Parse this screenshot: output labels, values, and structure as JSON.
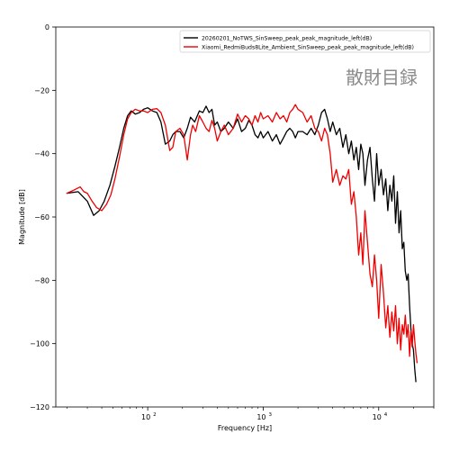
{
  "chart_data": {
    "type": "line",
    "title": "",
    "xlabel": "Frequency [Hz]",
    "ylabel": "Magnitude [dB]",
    "xscale": "log",
    "xlim": [
      16,
      30000
    ],
    "ylim": [
      -120,
      0
    ],
    "y_ticks": [
      0,
      -20,
      -40,
      -60,
      -80,
      -100,
      -120
    ],
    "y_tick_labels": [
      "0",
      "−20",
      "−40",
      "−60",
      "−80",
      "−100",
      "−120"
    ],
    "x_ticks": [
      100,
      1000,
      10000
    ],
    "x_tick_labels": [
      "10",
      "10",
      "10"
    ],
    "x_tick_exponents": [
      "2",
      "3",
      "4"
    ],
    "grid": false,
    "legend_position": "top-right",
    "watermark": "散財目録",
    "series": [
      {
        "name": "20260201_NoTWS_SinSweep_peak_peak_magnitude_left(dB)",
        "color": "#000000",
        "x": [
          20,
          25,
          30,
          34,
          38,
          42,
          47,
          52,
          57,
          62,
          67,
          72,
          78,
          85,
          92,
          100,
          110,
          120,
          130,
          142,
          155,
          165,
          175,
          190,
          205,
          220,
          235,
          255,
          280,
          300,
          320,
          340,
          360,
          380,
          400,
          430,
          460,
          500,
          550,
          600,
          650,
          700,
          750,
          800,
          850,
          900,
          950,
          1000,
          1100,
          1200,
          1300,
          1400,
          1500,
          1600,
          1700,
          1800,
          1900,
          2000,
          2200,
          2400,
          2600,
          2800,
          3000,
          3200,
          3400,
          3600,
          3800,
          4000,
          4300,
          4600,
          4900,
          5200,
          5500,
          5800,
          6100,
          6400,
          6700,
          7000,
          7300,
          7600,
          8000,
          8400,
          8800,
          9200,
          9600,
          10000,
          10500,
          11000,
          11500,
          12000,
          12500,
          13000,
          13500,
          14000,
          14500,
          15000,
          15500,
          16000,
          16500,
          17000,
          17500,
          18000,
          18500,
          19000,
          19500,
          20000,
          20500,
          21000
        ],
        "values": [
          -52.5,
          -52,
          -55,
          -59.5,
          -58,
          -55,
          -50,
          -44,
          -38,
          -32,
          -28,
          -26.5,
          -27.5,
          -27,
          -26,
          -25.5,
          -26.5,
          -27,
          -30,
          -37,
          -36,
          -34,
          -33,
          -33,
          -35,
          -32,
          -28.5,
          -30,
          -26.5,
          -27,
          -25,
          -27,
          -26,
          -31,
          -30,
          -33,
          -32,
          -30,
          -32,
          -29,
          -33,
          -32,
          -29.5,
          -31,
          -34,
          -35,
          -33,
          -35,
          -33,
          -36,
          -34,
          -37,
          -35,
          -33,
          -32,
          -33,
          -35,
          -33,
          -33,
          -34,
          -32,
          -34,
          -31,
          -27,
          -26,
          -29,
          -33,
          -30,
          -34,
          -32,
          -38,
          -34,
          -40,
          -36,
          -42,
          -38,
          -45,
          -37,
          -40,
          -50,
          -42,
          -38,
          -48,
          -55,
          -40,
          -50,
          -45,
          -53,
          -48,
          -58,
          -50,
          -55,
          -47,
          -62,
          -52,
          -65,
          -58,
          -70,
          -68,
          -77,
          -80,
          -78,
          -88,
          -95,
          -100,
          -102,
          -108,
          -112
        ]
      },
      {
        "name": "Xiaomi_RedmiBuds8Lite_Ambient_SinSweep_peak_peak_magnitude_left(dB)",
        "color": "#ee0000",
        "x": [
          20,
          23,
          26,
          28,
          30,
          33,
          36,
          40,
          44,
          48,
          52,
          57,
          62,
          67,
          72,
          78,
          85,
          92,
          100,
          110,
          120,
          130,
          142,
          155,
          165,
          175,
          190,
          205,
          220,
          235,
          245,
          260,
          280,
          300,
          320,
          340,
          360,
          380,
          400,
          430,
          460,
          500,
          550,
          600,
          650,
          700,
          750,
          800,
          850,
          900,
          950,
          1000,
          1100,
          1200,
          1300,
          1400,
          1500,
          1600,
          1700,
          1800,
          1900,
          2000,
          2200,
          2400,
          2600,
          2800,
          3000,
          3200,
          3400,
          3600,
          3800,
          4000,
          4300,
          4600,
          4900,
          5200,
          5500,
          5800,
          6100,
          6400,
          6700,
          7000,
          7300,
          7600,
          8000,
          8400,
          8800,
          9200,
          9600,
          10000,
          10500,
          11000,
          11500,
          12000,
          12500,
          13000,
          13500,
          14000,
          14500,
          15000,
          15500,
          16000,
          16500,
          17000,
          17500,
          18000,
          18500,
          19000,
          19500,
          20000,
          20500,
          21000,
          21500
        ],
        "values": [
          -52.5,
          -51.5,
          -50.5,
          -52,
          -52.5,
          -55,
          -57,
          -58,
          -56,
          -53,
          -48,
          -41,
          -34,
          -29,
          -27,
          -26,
          -26.5,
          -26.5,
          -27,
          -26,
          -25.8,
          -27,
          -31,
          -39,
          -38,
          -33,
          -32,
          -34,
          -42,
          -34,
          -31,
          -33,
          -28,
          -30,
          -32,
          -33,
          -29.5,
          -32,
          -36,
          -33,
          -31,
          -34,
          -32,
          -27.5,
          -30,
          -28,
          -29,
          -31,
          -28,
          -30,
          -27,
          -29,
          -28,
          -30,
          -27,
          -29,
          -28,
          -30,
          -27,
          -26,
          -24.5,
          -26,
          -27,
          -30,
          -28,
          -32,
          -33,
          -36,
          -32,
          -34,
          -40,
          -49,
          -45,
          -50,
          -47,
          -48,
          -45,
          -56,
          -52,
          -60,
          -72,
          -65,
          -75,
          -58,
          -68,
          -78,
          -82,
          -72,
          -80,
          -92,
          -75,
          -84,
          -95,
          -88,
          -98,
          -90,
          -96,
          -88,
          -100,
          -92,
          -102,
          -94,
          -97,
          -91,
          -98,
          -94,
          -104,
          -96,
          -101,
          -94,
          -99,
          -103,
          -106
        ]
      }
    ]
  }
}
